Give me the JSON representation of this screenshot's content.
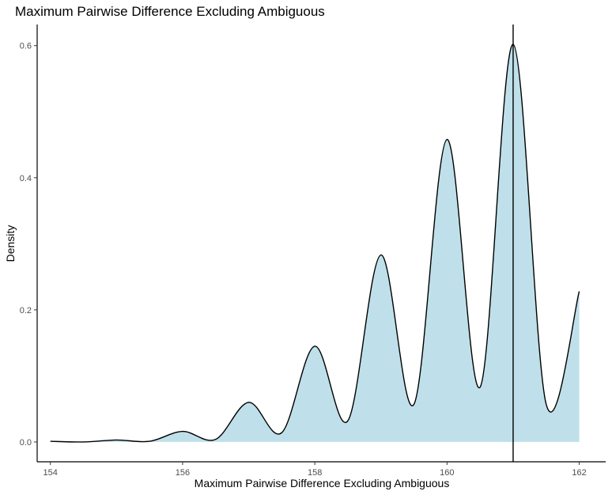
{
  "chart_data": {
    "type": "area",
    "title": "Maximum Pairwise Difference Excluding Ambiguous",
    "xlabel": "Maximum Pairwise Difference Excluding Ambiguous",
    "ylabel": "Density",
    "xlim": [
      153.8,
      162.4
    ],
    "ylim": [
      -0.03,
      0.632
    ],
    "x_ticks": [
      154,
      156,
      158,
      160,
      162
    ],
    "x_tick_labels": [
      "154",
      "156",
      "158",
      "160",
      "162"
    ],
    "y_ticks": [
      0.0,
      0.2,
      0.4,
      0.6
    ],
    "y_tick_labels": [
      "0.0",
      "0.2",
      "0.4",
      "0.6"
    ],
    "grid": false,
    "legend": "none",
    "fill_color": "#BFE0EA",
    "line_color": "#000000",
    "vline_x": 161.0,
    "series": [
      {
        "x": [
          154.0,
          154.5,
          155.0,
          155.5,
          156.0,
          156.5,
          157.0,
          157.5,
          158.0,
          158.5,
          159.0,
          159.5,
          160.0,
          160.5,
          161.0,
          161.5,
          162.0
        ],
        "values": [
          0.001,
          0.0,
          0.003,
          0.001,
          0.016,
          0.004,
          0.06,
          0.014,
          0.145,
          0.032,
          0.283,
          0.057,
          0.458,
          0.083,
          0.602,
          0.057,
          0.228
        ]
      }
    ]
  }
}
